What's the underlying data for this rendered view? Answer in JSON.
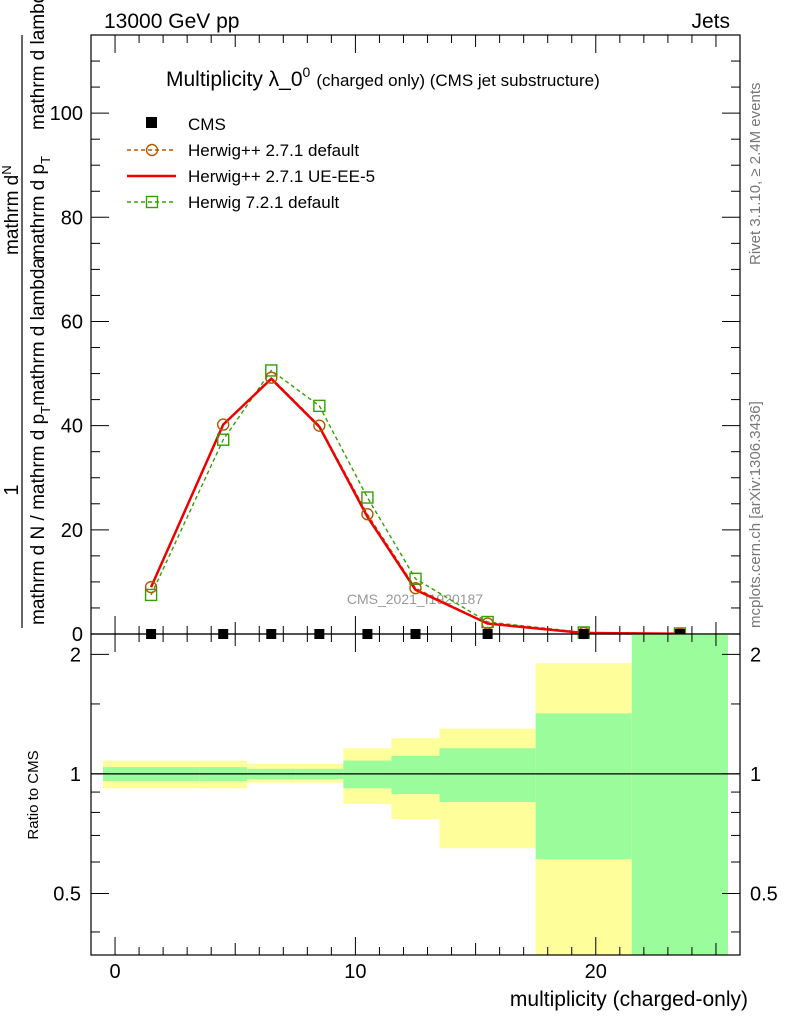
{
  "header": {
    "left": "13000 GeV pp",
    "right": "Jets"
  },
  "side_text": {
    "top": "Rivet 3.1.10, ≥ 2.4M events",
    "bottom": "mcplots.cern.ch [arXiv:1306.3436]"
  },
  "watermark": "CMS_2021_I1920187",
  "colors": {
    "cms": "#000000",
    "herwigpp_default": "#b05a00",
    "herwigpp_ueee5": "#ee0000",
    "herwig7": "#33a000",
    "band_green": "#9afc9a",
    "band_yellow": "#fefe9a"
  },
  "chart_data": [
    {
      "type": "line",
      "title_main": "Multiplicity λ_0",
      "title_sup": "0",
      "title_small": "(charged only) (CMS jet substructure)",
      "ylabel_top": "1",
      "ylabel_num": "mathrm d",
      "ylabel_num2": "N",
      "ylabel_den_a": "mathrm d p",
      "ylabel_den_b": "mathrm d lambda",
      "ylabel_left": "mathrm d N / mathrm d p",
      "ylabel_left2": "mathrm d p",
      "ylabel_sub": "T",
      "ylabel_right": "mathrm d lambda",
      "ylim": [
        0,
        115
      ],
      "xlim": [
        -1,
        26
      ],
      "yticks": [
        "0",
        "20",
        "40",
        "60",
        "80",
        "100"
      ],
      "x": [
        1.5,
        4.5,
        6.5,
        8.5,
        10.5,
        12.5,
        15.5,
        19.5,
        23.5
      ],
      "series": [
        {
          "name": "CMS",
          "values": [
            0,
            0,
            0,
            0,
            0,
            0,
            0,
            0,
            0
          ]
        },
        {
          "name": "Herwig++ 2.7.1 default",
          "values": [
            9.0,
            40.2,
            49.2,
            40.0,
            23.0,
            8.8,
            2.0,
            0.2,
            0.05
          ]
        },
        {
          "name": "Herwig++ 2.7.1 UE-EE-5",
          "values": [
            9.0,
            40.2,
            49.0,
            39.8,
            22.5,
            8.5,
            2.0,
            0.2,
            0.05
          ]
        },
        {
          "name": "Herwig 7.2.1 default",
          "values": [
            7.5,
            37.3,
            50.6,
            43.8,
            26.2,
            10.6,
            2.3,
            0.3,
            0.1
          ]
        }
      ]
    },
    {
      "type": "area",
      "ylabel": "Ratio to CMS",
      "xlabel": "multiplicity (charged-only)",
      "ylim": [
        0.35,
        2.25
      ],
      "xlim": [
        -1,
        26
      ],
      "xticks": [
        "0",
        "10",
        "20"
      ],
      "yticks": [
        "0.5",
        "1",
        "2"
      ],
      "bins": [
        {
          "x0": -0.5,
          "x1": 3.5,
          "green": [
            0.96,
            1.04
          ],
          "yellow": [
            0.92,
            1.08
          ]
        },
        {
          "x0": 3.5,
          "x1": 5.5,
          "green": [
            0.96,
            1.04
          ],
          "yellow": [
            0.92,
            1.08
          ]
        },
        {
          "x0": 5.5,
          "x1": 7.5,
          "green": [
            0.97,
            1.03
          ],
          "yellow": [
            0.95,
            1.06
          ]
        },
        {
          "x0": 7.5,
          "x1": 9.5,
          "green": [
            0.97,
            1.03
          ],
          "yellow": [
            0.95,
            1.06
          ]
        },
        {
          "x0": 9.5,
          "x1": 11.5,
          "green": [
            0.92,
            1.08
          ],
          "yellow": [
            0.84,
            1.16
          ]
        },
        {
          "x0": 11.5,
          "x1": 13.5,
          "green": [
            0.89,
            1.11
          ],
          "yellow": [
            0.77,
            1.23
          ]
        },
        {
          "x0": 13.5,
          "x1": 17.5,
          "green": [
            0.85,
            1.16
          ],
          "yellow": [
            0.65,
            1.3
          ]
        },
        {
          "x0": 17.5,
          "x1": 21.5,
          "green": [
            0.61,
            1.42
          ],
          "yellow": [
            0.35,
            1.9
          ]
        },
        {
          "x0": 21.5,
          "x1": 25.5,
          "green": [
            0.35,
            2.25
          ],
          "yellow": [
            0.35,
            2.25
          ]
        }
      ]
    }
  ]
}
